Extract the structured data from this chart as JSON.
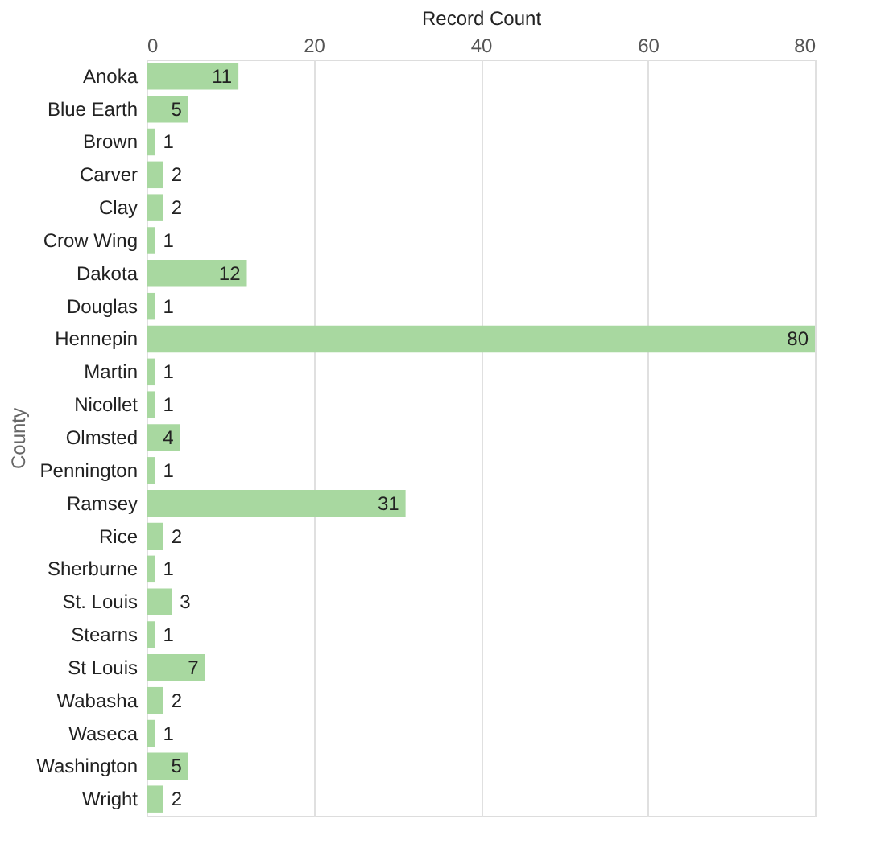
{
  "chart_data": {
    "type": "bar",
    "orientation": "horizontal",
    "xlabel": "Record Count",
    "ylabel": "County",
    "categories": [
      "Anoka",
      "Blue Earth",
      "Brown",
      "Carver",
      "Clay",
      "Crow Wing",
      "Dakota",
      "Douglas",
      "Hennepin",
      "Martin",
      "Nicollet",
      "Olmsted",
      "Pennington",
      "Ramsey",
      "Rice",
      "Sherburne",
      "St. Louis",
      "Stearns",
      "St Louis",
      "Wabasha",
      "Waseca",
      "Washington",
      "Wright"
    ],
    "values": [
      11,
      5,
      1,
      2,
      2,
      1,
      12,
      1,
      80,
      1,
      1,
      4,
      1,
      31,
      2,
      1,
      3,
      1,
      7,
      2,
      1,
      5,
      2
    ],
    "color": "#a8d8a0",
    "xlim": [
      0,
      80
    ],
    "xticks": [
      0,
      20,
      40,
      60,
      80
    ],
    "grid": "x",
    "data_labels": true
  }
}
